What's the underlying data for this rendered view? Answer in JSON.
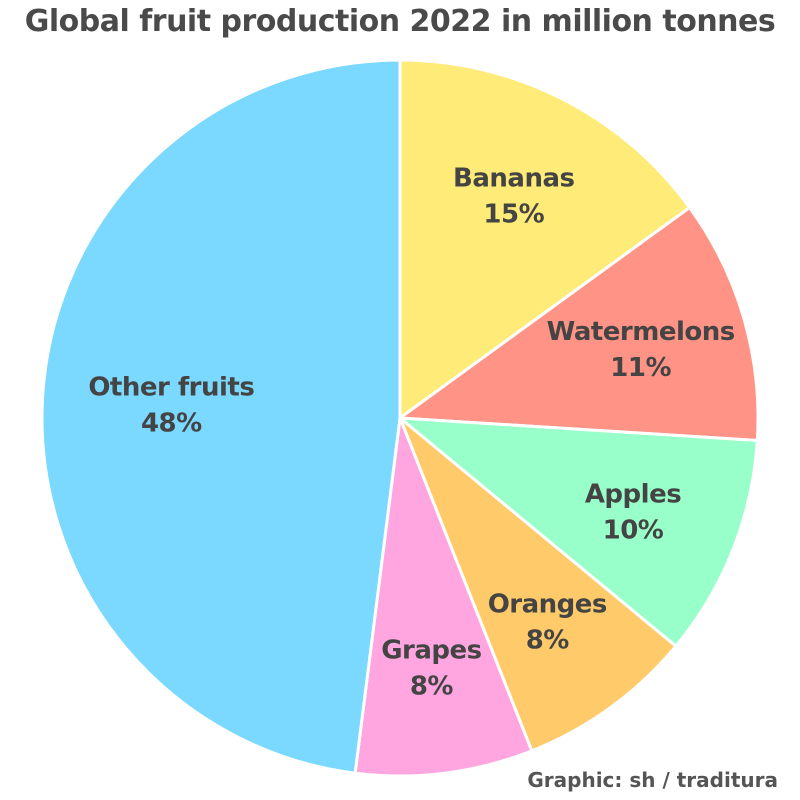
{
  "title": "Global fruit production 2022 in million tonnes",
  "credit": "Graphic: sh / traditura",
  "chart_data": {
    "type": "pie",
    "title": "Global fruit production 2022 in million tonnes",
    "slices": [
      {
        "name": "Bananas",
        "value": 15,
        "percent_label": "15%",
        "color": "#FFEB77"
      },
      {
        "name": "Watermelons",
        "value": 11,
        "percent_label": "11%",
        "color": "#FF9385"
      },
      {
        "name": "Apples",
        "value": 10,
        "percent_label": "10%",
        "color": "#99FFCA"
      },
      {
        "name": "Oranges",
        "value": 8,
        "percent_label": "8%",
        "color": "#FFCB6A"
      },
      {
        "name": "Grapes",
        "value": 8,
        "percent_label": "8%",
        "color": "#FFA6E0"
      },
      {
        "name": "Other fruits",
        "value": 48,
        "percent_label": "48%",
        "color": "#7BD8FF"
      }
    ],
    "start_angle_deg": 0,
    "direction": "clockwise"
  }
}
